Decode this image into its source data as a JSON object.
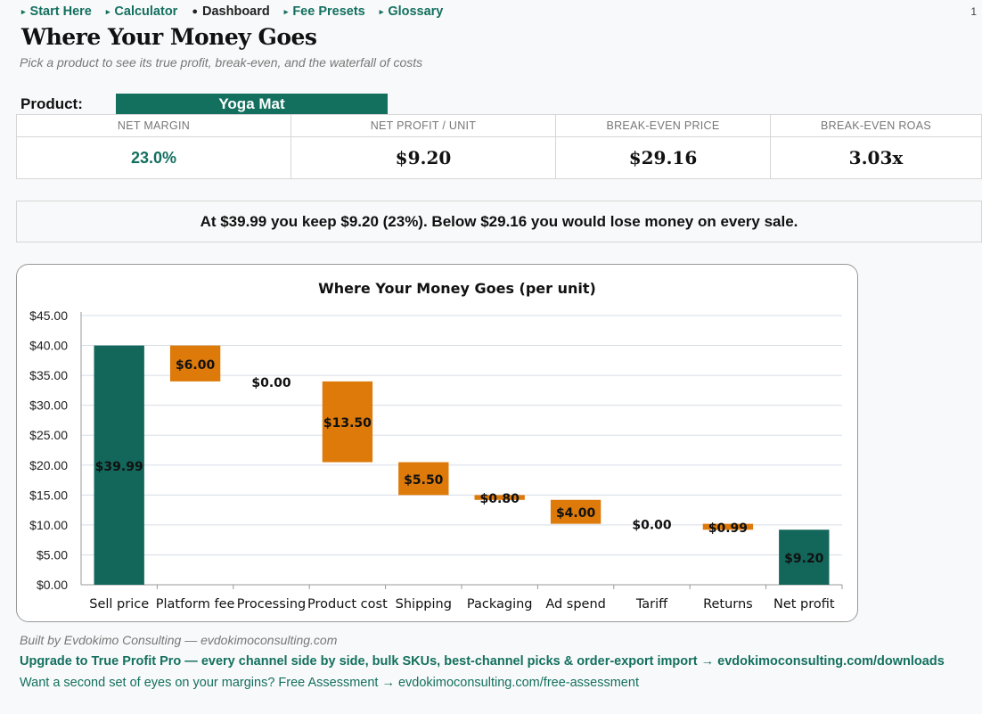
{
  "nav": {
    "items": [
      {
        "label": "Start Here",
        "active": false
      },
      {
        "label": "Calculator",
        "active": false
      },
      {
        "label": "Dashboard",
        "active": true
      },
      {
        "label": "Fee Presets",
        "active": false
      },
      {
        "label": "Glossary",
        "active": false
      }
    ],
    "page_number": "1"
  },
  "header": {
    "title": "Where Your Money Goes",
    "subtitle": "Pick a product to see its true profit, break-even, and the waterfall of costs"
  },
  "product": {
    "label": "Product:",
    "selected": "Yoga Mat"
  },
  "kpis": [
    {
      "label": "NET MARGIN",
      "value": "23.0%"
    },
    {
      "label": "NET PROFIT / UNIT",
      "value": "$9.20"
    },
    {
      "label": "BREAK-EVEN PRICE",
      "value": "$29.16"
    },
    {
      "label": "BREAK-EVEN ROAS",
      "value": "3.03x"
    }
  ],
  "summary": "At $39.99 you keep $9.20 (23%). Below $29.16 you would lose money on every sale.",
  "colors": {
    "brand": "#13705f",
    "cost": "#dd7a0a",
    "total": "#13665a"
  },
  "chart_data": {
    "type": "bar",
    "subtype": "waterfall",
    "title": "Where Your Money Goes (per unit)",
    "categories": [
      "Sell price",
      "Platform fee",
      "Processing",
      "Product cost",
      "Shipping",
      "Packaging",
      "Ad spend",
      "Tariff",
      "Returns",
      "Net profit"
    ],
    "values": [
      39.99,
      6.0,
      0.0,
      13.5,
      5.5,
      0.8,
      4.0,
      0.0,
      0.99,
      9.2
    ],
    "kinds": [
      "total",
      "cost",
      "cost",
      "cost",
      "cost",
      "cost",
      "cost",
      "cost",
      "cost",
      "total"
    ],
    "data_labels": [
      "$39.99",
      "$6.00",
      "$0.00",
      "$13.50",
      "$5.50",
      "$0.80",
      "$4.00",
      "$0.00",
      "$0.99",
      "$9.20"
    ],
    "ylim": [
      0,
      45
    ],
    "ytick_step": 5,
    "ytick_labels": [
      "$0.00",
      "$5.00",
      "$10.00",
      "$15.00",
      "$20.00",
      "$25.00",
      "$30.00",
      "$35.00",
      "$40.00",
      "$45.00"
    ],
    "grid": true,
    "legend": "none"
  },
  "footer": {
    "credit": "Built by Evdokimo Consulting — evdokimoconsulting.com",
    "upgrade": "Upgrade to True Profit Pro — every channel side by side, bulk SKUs, best-channel picks & order-export import → evdokimoconsulting.com/downloads",
    "assessment": "Want a second set of eyes on your margins? Free Assessment → evdokimoconsulting.com/free-assessment"
  }
}
